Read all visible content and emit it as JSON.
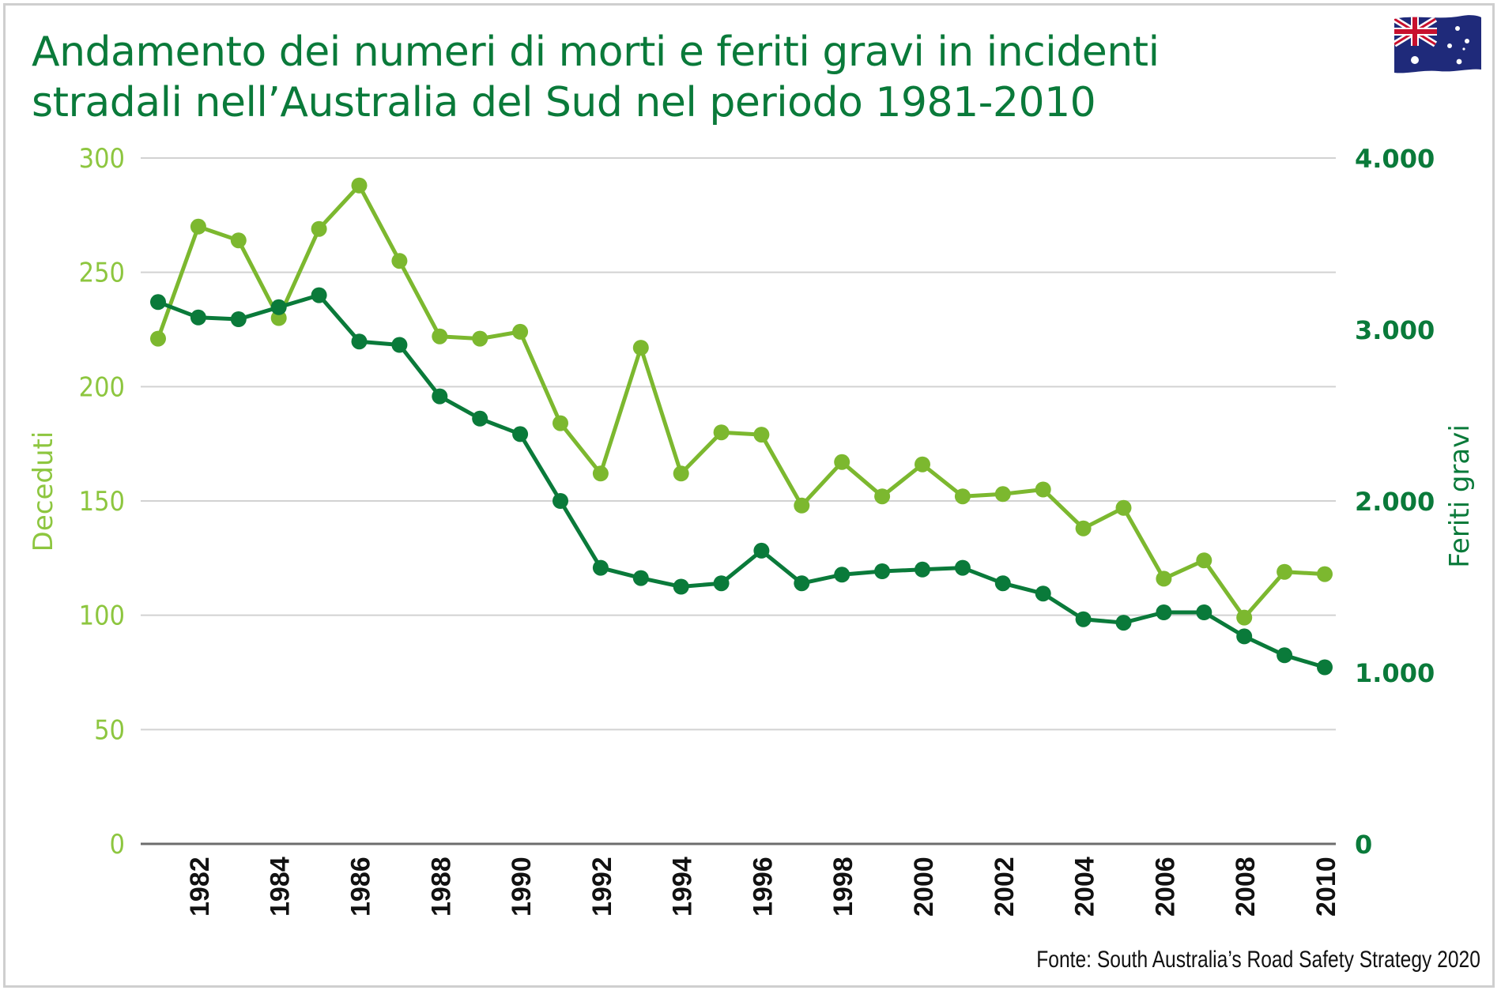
{
  "chart_data": {
    "type": "line",
    "title": "Andamento dei numeri di morti e feriti gravi in incidenti stradali nell’Australia del Sud nel periodo 1981-2010",
    "title_lines": [
      "Andamento dei numeri di morti e feriti gravi in incidenti",
      "stradali nell’Australia del Sud nel periodo 1981-2010"
    ],
    "source": "Fonte: South Australia’s Road Safety Strategy 2020",
    "x": [
      1981,
      1982,
      1983,
      1984,
      1985,
      1986,
      1987,
      1988,
      1989,
      1990,
      1991,
      1992,
      1993,
      1994,
      1995,
      1996,
      1997,
      1998,
      1999,
      2000,
      2001,
      2002,
      2003,
      2004,
      2005,
      2006,
      2007,
      2008,
      2009,
      2010
    ],
    "x_tick_labels": [
      "1982",
      "1984",
      "1986",
      "1988",
      "1990",
      "1992",
      "1994",
      "1996",
      "1998",
      "2000",
      "2002",
      "2004",
      "2006",
      "2008",
      "2010"
    ],
    "x_tick_values": [
      1982,
      1984,
      1986,
      1988,
      1990,
      1992,
      1994,
      1996,
      1998,
      2000,
      2002,
      2004,
      2006,
      2008,
      2010
    ],
    "y_left": {
      "label": "Deceduti",
      "ylim": [
        0,
        300
      ],
      "ticks": [
        0,
        50,
        100,
        150,
        200,
        250,
        300
      ],
      "tick_labels": [
        "0",
        "50",
        "100",
        "150",
        "200",
        "250",
        "300"
      ]
    },
    "y_right": {
      "label": "Feriti gravi",
      "ylim": [
        0,
        4000
      ],
      "ticks": [
        0,
        1000,
        2000,
        3000,
        4000
      ],
      "tick_labels": [
        "0",
        "1.000",
        "2.000",
        "3.000",
        "4.000"
      ]
    },
    "grid": true,
    "series": [
      {
        "name": "Deceduti",
        "axis": "left",
        "color": "#7cb82f",
        "values": [
          221,
          270,
          264,
          230,
          269,
          288,
          255,
          222,
          221,
          224,
          184,
          162,
          217,
          162,
          180,
          179,
          148,
          167,
          152,
          166,
          152,
          153,
          155,
          138,
          147,
          116,
          124,
          99,
          119,
          118
        ]
      },
      {
        "name": "Feriti gravi",
        "axis": "right",
        "color": "#0a7a3a",
        "values": [
          3160,
          3070,
          3060,
          3130,
          3200,
          2930,
          2910,
          2610,
          2480,
          2390,
          2000,
          1610,
          1550,
          1500,
          1520,
          1710,
          1520,
          1570,
          1590,
          1600,
          1610,
          1520,
          1460,
          1310,
          1290,
          1350,
          1350,
          1210,
          1100,
          1030
        ]
      }
    ],
    "colors": {
      "left_axis": "#8dc63f",
      "right_axis": "#0a7a3a",
      "grid": "#d2d2d2",
      "baseline": "#6d6d6d"
    }
  }
}
